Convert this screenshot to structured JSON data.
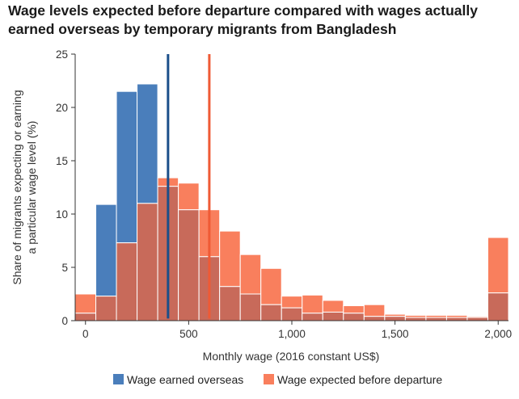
{
  "chart_data": {
    "type": "bar",
    "title": "Wage levels expected before departure compared with wages actually earned overseas by temporary migrants from Bangladesh",
    "xlabel": "Monthly wage (2016 constant US$)",
    "ylabel_lines": [
      "Share of migrants expecting or earning",
      "a particular wage level (%)"
    ],
    "xlim": [
      -50,
      2050
    ],
    "ylim": [
      0,
      25
    ],
    "x_ticks": [
      0,
      500,
      1000,
      1500,
      2000
    ],
    "x_tick_labels": [
      "0",
      "500",
      "1,000",
      "1,500",
      "2,000"
    ],
    "y_ticks": [
      0,
      5,
      10,
      15,
      20,
      25
    ],
    "y_tick_labels": [
      "0",
      "5",
      "10",
      "15",
      "20",
      "25"
    ],
    "bin_width": 100,
    "bin_starts": [
      -50,
      50,
      150,
      250,
      350,
      450,
      550,
      650,
      750,
      850,
      950,
      1050,
      1150,
      1250,
      1350,
      1450,
      1550,
      1650,
      1750,
      1850,
      1950
    ],
    "series": [
      {
        "name": "Wage earned overseas",
        "color": "#4a7ebb",
        "values": [
          0.7,
          10.9,
          21.5,
          22.2,
          12.6,
          10.4,
          6.0,
          3.2,
          2.5,
          1.5,
          1.2,
          0.7,
          0.8,
          0.7,
          0.4,
          0.4,
          0.3,
          0.3,
          0.3,
          0.3,
          2.6
        ]
      },
      {
        "name": "Wage expected before departure",
        "color": "#f97f5d",
        "values": [
          2.5,
          2.3,
          7.3,
          11.0,
          13.4,
          12.9,
          10.4,
          8.4,
          6.2,
          4.9,
          2.3,
          2.4,
          1.9,
          1.4,
          1.5,
          0.6,
          0.5,
          0.5,
          0.5,
          0.4,
          7.8
        ]
      }
    ],
    "overlap_color": "#c86a5a",
    "vertical_lines": [
      {
        "name": "Wage earned overseas",
        "x": 400,
        "y_top": 25,
        "color": "#1b4f8a"
      },
      {
        "name": "Wage expected before departure",
        "x": 600,
        "y_top": 25,
        "color": "#ef5a35"
      }
    ],
    "legend": [
      {
        "label": "Wage earned overseas",
        "color": "#4a7ebb"
      },
      {
        "label": "Wage expected before departure",
        "color": "#f97f5d"
      }
    ],
    "legend_position": "bottom"
  }
}
